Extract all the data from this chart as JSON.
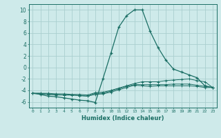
{
  "xlabel": "Humidex (Indice chaleur)",
  "ylabel": "",
  "background_color": "#ceeaea",
  "grid_color": "#aacfcf",
  "line_color": "#1a6e64",
  "xlim": [
    -0.5,
    23.5
  ],
  "ylim": [
    -7,
    11
  ],
  "xticks": [
    0,
    1,
    2,
    3,
    4,
    5,
    6,
    7,
    8,
    9,
    10,
    11,
    12,
    13,
    14,
    15,
    16,
    17,
    18,
    19,
    20,
    21,
    22,
    23
  ],
  "yticks": [
    -6,
    -4,
    -2,
    0,
    2,
    4,
    6,
    8,
    10
  ],
  "line1_x": [
    0,
    1,
    2,
    3,
    4,
    5,
    6,
    7,
    8,
    9,
    10,
    11,
    12,
    13,
    14,
    15,
    16,
    17,
    18,
    19,
    20,
    21,
    22,
    23
  ],
  "line1_y": [
    -4.5,
    -4.7,
    -5.0,
    -5.1,
    -5.3,
    -5.5,
    -5.7,
    -5.8,
    -6.1,
    -1.9,
    2.5,
    7.0,
    9.0,
    10.0,
    10.0,
    6.3,
    3.5,
    1.3,
    -0.3,
    -0.8,
    -1.3,
    -1.8,
    -3.2,
    -3.5
  ],
  "line2_x": [
    0,
    1,
    2,
    3,
    4,
    5,
    6,
    7,
    8,
    9,
    10,
    11,
    12,
    13,
    14,
    15,
    16,
    17,
    18,
    19,
    20,
    21,
    22,
    23
  ],
  "line2_y": [
    -4.5,
    -4.6,
    -4.7,
    -4.8,
    -4.8,
    -4.8,
    -4.9,
    -5.0,
    -4.7,
    -4.6,
    -4.3,
    -3.9,
    -3.5,
    -3.1,
    -3.2,
    -3.3,
    -3.2,
    -3.2,
    -3.2,
    -3.2,
    -3.2,
    -3.3,
    -3.5,
    -3.5
  ],
  "line3_x": [
    0,
    1,
    2,
    3,
    4,
    5,
    6,
    7,
    8,
    9,
    10,
    11,
    12,
    13,
    14,
    15,
    16,
    17,
    18,
    19,
    20,
    21,
    22,
    23
  ],
  "line3_y": [
    -4.5,
    -4.5,
    -4.7,
    -4.7,
    -4.8,
    -4.8,
    -4.9,
    -5.0,
    -4.5,
    -4.5,
    -4.1,
    -3.7,
    -3.3,
    -3.0,
    -3.0,
    -3.0,
    -3.0,
    -3.0,
    -2.9,
    -2.9,
    -2.9,
    -3.1,
    -3.3,
    -3.5
  ],
  "line4_x": [
    0,
    1,
    2,
    3,
    4,
    5,
    6,
    7,
    8,
    9,
    10,
    11,
    12,
    13,
    14,
    15,
    16,
    17,
    18,
    19,
    20,
    21,
    22,
    23
  ],
  "line4_y": [
    -4.5,
    -4.5,
    -4.5,
    -4.6,
    -4.6,
    -4.7,
    -4.7,
    -4.8,
    -4.4,
    -4.3,
    -4.0,
    -3.6,
    -3.2,
    -2.8,
    -2.5,
    -2.5,
    -2.5,
    -2.3,
    -2.2,
    -2.1,
    -2.0,
    -2.3,
    -2.5,
    -3.5
  ]
}
